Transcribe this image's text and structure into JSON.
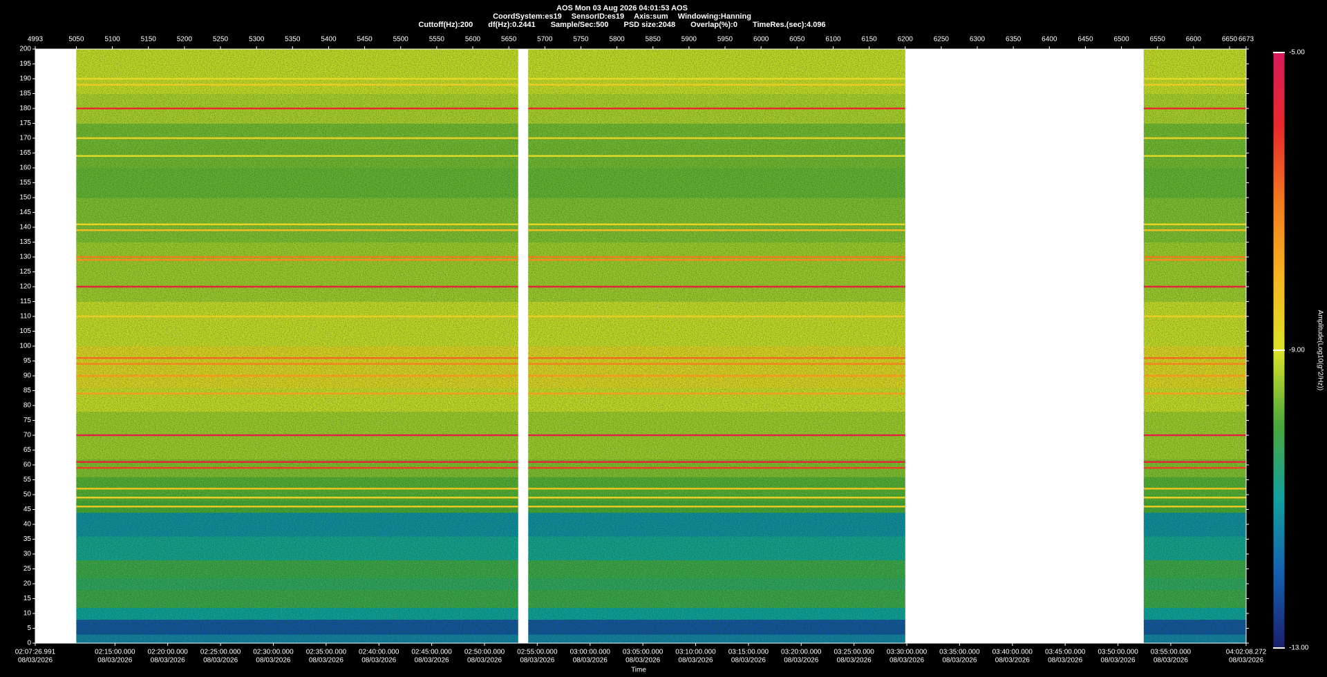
{
  "chart_data": {
    "type": "spectrogram",
    "title": "AOS  Mon 03 Aug 2026 04:01:53  AOS",
    "subtitle": [
      "CoordSystem:es19",
      "SensorID:es19",
      "Axis:sum",
      "Windowing:Hanning"
    ],
    "parameters": [
      "Cuttoff(Hz):200",
      "df(Hz):0.2441",
      "Sample/Sec:500",
      "PSD size:2048",
      "Overlap(%):0",
      "TimeRes.(sec):4.096"
    ],
    "xlabel": "Time",
    "colorbar_label": "Amplitude(Log10(g^2/Hz))",
    "xlim": [
      4993,
      6673
    ],
    "xticks": [
      4993,
      5050,
      5100,
      5150,
      5200,
      5250,
      5300,
      5350,
      5400,
      5450,
      5500,
      5550,
      5600,
      5650,
      5700,
      5750,
      5800,
      5850,
      5900,
      5950,
      6000,
      6050,
      6100,
      6150,
      6200,
      6250,
      6300,
      6350,
      6400,
      6450,
      6500,
      6550,
      6600,
      6650,
      6673
    ],
    "time_ticks": [
      {
        "value": 4993,
        "label": "02:07:26.991",
        "date": "08/03/2026"
      },
      {
        "value": 5103.6,
        "label": "02:15:00.000",
        "date": "08/03/2026"
      },
      {
        "value": 5176.8,
        "label": "02:20:00.000",
        "date": "08/03/2026"
      },
      {
        "value": 5250.1,
        "label": "02:25:00.000",
        "date": "08/03/2026"
      },
      {
        "value": 5323.3,
        "label": "02:30:00.000",
        "date": "08/03/2026"
      },
      {
        "value": 5396.6,
        "label": "02:35:00.000",
        "date": "08/03/2026"
      },
      {
        "value": 5469.8,
        "label": "02:40:00.000",
        "date": "08/03/2026"
      },
      {
        "value": 5543.0,
        "label": "02:45:00.000",
        "date": "08/03/2026"
      },
      {
        "value": 5616.3,
        "label": "02:50:00.000",
        "date": "08/03/2026"
      },
      {
        "value": 5689.5,
        "label": "02:55:00.000",
        "date": "08/03/2026"
      },
      {
        "value": 5762.8,
        "label": "03:00:00.000",
        "date": "08/03/2026"
      },
      {
        "value": 5836.0,
        "label": "03:05:00.000",
        "date": "08/03/2026"
      },
      {
        "value": 5909.2,
        "label": "03:10:00.000",
        "date": "08/03/2026"
      },
      {
        "value": 5982.5,
        "label": "03:15:00.000",
        "date": "08/03/2026"
      },
      {
        "value": 6055.7,
        "label": "03:20:00.000",
        "date": "08/03/2026"
      },
      {
        "value": 6129.0,
        "label": "03:25:00.000",
        "date": "08/03/2026"
      },
      {
        "value": 6202.2,
        "label": "03:30:00.000",
        "date": "08/03/2026"
      },
      {
        "value": 6275.4,
        "label": "03:35:00.000",
        "date": "08/03/2026"
      },
      {
        "value": 6348.7,
        "label": "03:40:00.000",
        "date": "08/03/2026"
      },
      {
        "value": 6421.9,
        "label": "03:45:00.000",
        "date": "08/03/2026"
      },
      {
        "value": 6495.2,
        "label": "03:50:00.000",
        "date": "08/03/2026"
      },
      {
        "value": 6568.4,
        "label": "03:55:00.000",
        "date": "08/03/2026"
      },
      {
        "value": 6673,
        "label": "04:02:08.272",
        "date": "08/03/2026"
      }
    ],
    "ylim": [
      0,
      200
    ],
    "yticks": [
      0,
      5,
      10,
      15,
      20,
      25,
      30,
      35,
      40,
      45,
      50,
      55,
      60,
      65,
      70,
      75,
      80,
      85,
      90,
      95,
      100,
      105,
      110,
      115,
      120,
      125,
      130,
      135,
      140,
      145,
      150,
      155,
      160,
      165,
      170,
      175,
      180,
      185,
      190,
      195,
      200
    ],
    "clim": [
      -13,
      -5
    ],
    "cticks": [
      {
        "value": -13,
        "label": "-13.00"
      },
      {
        "value": -9,
        "label": "-9.00"
      },
      {
        "value": -5,
        "label": "-5.00"
      }
    ],
    "colormap": [
      "#1a1f6e",
      "#1560b0",
      "#12a0a0",
      "#4aa83a",
      "#dce22a",
      "#f7b320",
      "#f27a1e",
      "#e8282c",
      "#d81b5a"
    ],
    "segments": [
      [
        5050,
        5663
      ],
      [
        5677,
        6200
      ],
      [
        6531,
        6673
      ]
    ],
    "background": {
      "edges": [
        0,
        3,
        8,
        12,
        18,
        22,
        28,
        36,
        44,
        48,
        56,
        62,
        78,
        86,
        100,
        115,
        135,
        150,
        160,
        175,
        185,
        200
      ],
      "levels": [
        -11.5,
        -12.2,
        -11,
        -10.2,
        -10.4,
        -10.2,
        -10.9,
        -11.3,
        -10,
        -9.9,
        -9.6,
        -9.4,
        -9.1,
        -8.7,
        -9.1,
        -9.4,
        -9.6,
        -9.8,
        -9.7,
        -9.3,
        -9.1
      ]
    },
    "bands": [
      {
        "freq": 180,
        "amplitude": -6
      },
      {
        "freq": 190,
        "amplitude": -8.8
      },
      {
        "freq": 188,
        "amplitude": -8.5
      },
      {
        "freq": 170,
        "amplitude": -8.6
      },
      {
        "freq": 164,
        "amplitude": -8.8
      },
      {
        "freq": 141,
        "amplitude": -8.7
      },
      {
        "freq": 139,
        "amplitude": -8.2
      },
      {
        "freq": 130,
        "amplitude": -7
      },
      {
        "freq": 129,
        "amplitude": -7.3
      },
      {
        "freq": 120,
        "amplitude": -5.6
      },
      {
        "freq": 110,
        "amplitude": -8.5
      },
      {
        "freq": 96,
        "amplitude": -6.8
      },
      {
        "freq": 94,
        "amplitude": -7.2
      },
      {
        "freq": 90,
        "amplitude": -7.5
      },
      {
        "freq": 84,
        "amplitude": -7.6
      },
      {
        "freq": 70,
        "amplitude": -5.5
      },
      {
        "freq": 61,
        "amplitude": -5.8
      },
      {
        "freq": 59,
        "amplitude": -6.3
      },
      {
        "freq": 52,
        "amplitude": -8.3
      },
      {
        "freq": 49,
        "amplitude": -8.6
      },
      {
        "freq": 46,
        "amplitude": -8.4
      }
    ]
  }
}
